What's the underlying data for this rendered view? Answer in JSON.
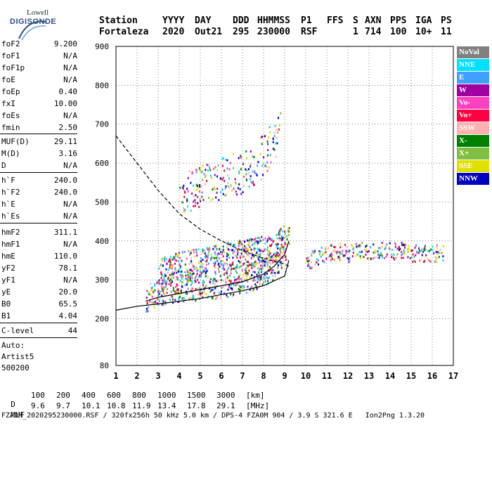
{
  "logo": {
    "line1": "Lowell",
    "line2": "DIGISONDE"
  },
  "header": {
    "labels": [
      "Station",
      "YYYY",
      "DAY",
      "DDD",
      "HHMMSS",
      "P1",
      "FFS",
      "S",
      "AXN",
      "PPS",
      "IGA",
      "PS"
    ],
    "values": [
      "Fortaleza",
      "2020",
      "Out21",
      "295",
      "230000",
      "RSF",
      "1",
      "714",
      "100",
      "10+",
      "11"
    ]
  },
  "params_group1": [
    {
      "name": "foF2",
      "value": "9.200"
    },
    {
      "name": "foF1",
      "value": "N/A"
    },
    {
      "name": "foF1p",
      "value": "N/A"
    },
    {
      "name": "foE",
      "value": "N/A"
    },
    {
      "name": "foEp",
      "value": "0.40"
    },
    {
      "name": "fxI",
      "value": "10.00"
    },
    {
      "name": "foEs",
      "value": "N/A"
    },
    {
      "name": "fmin",
      "value": "2.50"
    }
  ],
  "params_group2": [
    {
      "name": "MUF(D)",
      "value": "29.11"
    },
    {
      "name": "M(D)",
      "value": "3.16"
    },
    {
      "name": "D",
      "value": "N/A"
    }
  ],
  "params_group3": [
    {
      "name": "h`F",
      "value": "240.0"
    },
    {
      "name": "h`F2",
      "value": "240.0"
    },
    {
      "name": "h`E",
      "value": "N/A"
    },
    {
      "name": "h`Es",
      "value": "N/A"
    }
  ],
  "params_group4": [
    {
      "name": "hmF2",
      "value": "311.1"
    },
    {
      "name": "hmF1",
      "value": "N/A"
    },
    {
      "name": "hmE",
      "value": "110.0"
    },
    {
      "name": "yF2",
      "value": "78.1"
    },
    {
      "name": "yF1",
      "value": "N/A"
    },
    {
      "name": "yE",
      "value": "20.0"
    },
    {
      "name": "B0",
      "value": "65.5"
    },
    {
      "name": "B1",
      "value": "4.04"
    }
  ],
  "clevel": {
    "name": "C-level",
    "value": "44"
  },
  "auto": {
    "line1": "Auto:",
    "line2": "Artist5",
    "line3": "500200"
  },
  "legend": [
    {
      "label": "NoVal",
      "color": "#808080",
      "text": "#ffffff"
    },
    {
      "label": "NNE",
      "color": "#00e0ff",
      "text": "#ffffff"
    },
    {
      "label": "E",
      "color": "#40a0ff",
      "text": "#ffffff"
    },
    {
      "label": "W",
      "color": "#a000a0",
      "text": "#ffffff"
    },
    {
      "label": "Vo-",
      "color": "#ff40c0",
      "text": "#ffffff"
    },
    {
      "label": "Vo+",
      "color": "#ff0040",
      "text": "#ffffff"
    },
    {
      "label": "SSW",
      "color": "#ffb0b0",
      "text": "#ffffff"
    },
    {
      "label": "X-",
      "color": "#008000",
      "text": "#ffffff"
    },
    {
      "label": "X+",
      "color": "#80c040",
      "text": "#ffffff"
    },
    {
      "label": "SSE",
      "color": "#e0e000",
      "text": "#ffffff"
    },
    {
      "label": "NNW",
      "color": "#0000c0",
      "text": "#ffffff"
    }
  ],
  "mufrow": {
    "d_label": "D",
    "d_values": [
      "100",
      "200",
      "400",
      "600",
      "800",
      "1000",
      "1500",
      "3000"
    ],
    "d_unit": "[km]",
    "muf_label": "MUF",
    "muf_values": [
      "9.6",
      "9.7",
      "10.1",
      "10.8",
      "11.9",
      "13.4",
      "17.8",
      "29.1"
    ],
    "muf_unit": "[MHz]"
  },
  "footer": "FZA0M_2020295230000.RSF / 320fx256h 50 kHz 5.0 km / DPS-4 FZA0M 904 / 3.9 S 321.6 E   Ion2Png 1.3.20",
  "chart_data": {
    "type": "scatter",
    "title": "",
    "xlabel": "",
    "ylabel": "",
    "xlim": [
      1,
      17
    ],
    "ylim": [
      80,
      900
    ],
    "x_ticks": [
      1,
      2,
      3,
      4,
      5,
      6,
      7,
      8,
      9,
      10,
      11,
      12,
      13,
      14,
      15,
      16,
      17
    ],
    "y_ticks": [
      80,
      200,
      300,
      400,
      500,
      600,
      700,
      800,
      900
    ],
    "grid": true,
    "legend_placement": "right",
    "series": [
      {
        "kind": "echo_band",
        "color_cycle": true,
        "x": [
          2.4,
          3,
          4,
          5,
          6,
          7,
          7.5,
          8,
          8.5,
          9,
          9.2
        ],
        "y": [
          255,
          270,
          280,
          285,
          290,
          300,
          310,
          320,
          340,
          380,
          420
        ]
      },
      {
        "kind": "echo_band_upper",
        "color_cycle": true,
        "x": [
          3,
          4,
          5,
          6,
          7,
          8,
          8.5,
          9
        ],
        "y": [
          320,
          340,
          350,
          360,
          370,
          380,
          380,
          420
        ]
      },
      {
        "kind": "second_hop",
        "color_cycle": true,
        "x": [
          4,
          5,
          6,
          7,
          7.5,
          8,
          8.5,
          8.8
        ],
        "y": [
          520,
          540,
          560,
          580,
          600,
          620,
          660,
          700
        ]
      },
      {
        "kind": "spread",
        "color_cycle": true,
        "x": [
          10,
          10.5,
          11,
          11.5,
          12,
          12.5,
          13,
          13.5,
          14,
          14.5,
          15,
          15.5,
          16,
          16.5
        ],
        "y": [
          350,
          360,
          370,
          375,
          370,
          380,
          375,
          380,
          375,
          380,
          370,
          370,
          370,
          370
        ]
      },
      {
        "kind": "fit_virtual",
        "color": "#000000",
        "x": [
          2.4,
          3,
          4,
          5,
          6,
          7,
          8,
          8.5,
          9,
          9.2
        ],
        "y": [
          245,
          255,
          265,
          275,
          285,
          295,
          315,
          335,
          365,
          400
        ]
      },
      {
        "kind": "profile_solid",
        "color": "#000000",
        "x": [
          1,
          2,
          3,
          4,
          5,
          6,
          7,
          8,
          9,
          9.2
        ],
        "y": [
          222,
          232,
          238,
          245,
          252,
          262,
          272,
          285,
          310,
          350
        ]
      },
      {
        "kind": "profile_dashed",
        "color": "#000000",
        "x": [
          1,
          2,
          3,
          4,
          5,
          6,
          7,
          8,
          9,
          9.2
        ],
        "y": [
          670,
          600,
          530,
          470,
          430,
          400,
          375,
          355,
          340,
          335
        ]
      }
    ]
  }
}
